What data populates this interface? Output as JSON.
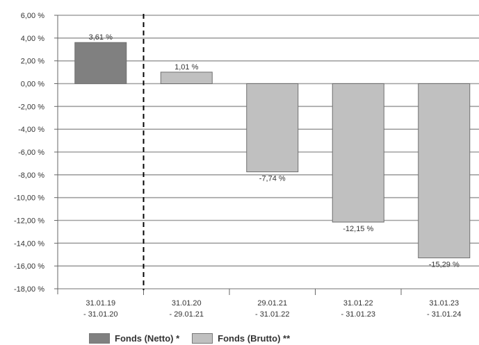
{
  "chart_data": {
    "type": "bar",
    "categories": [
      [
        "31.01.19",
        "- 31.01.20"
      ],
      [
        "31.01.20",
        "- 29.01.21"
      ],
      [
        "29.01.21",
        "- 31.01.22"
      ],
      [
        "31.01.22",
        "- 31.01.23"
      ],
      [
        "31.01.23",
        "- 31.01.24"
      ]
    ],
    "values": [
      3.61,
      1.01,
      -7.74,
      -12.15,
      -15.29
    ],
    "value_labels": [
      "3,61 %",
      "1,01 %",
      "-7,74 %",
      "-12,15 %",
      "-15,29 %"
    ],
    "bar_series": [
      0,
      1,
      1,
      1,
      1
    ],
    "series": [
      {
        "name": "Fonds (Netto) *",
        "color": "#808080"
      },
      {
        "name": "Fonds (Brutto) **",
        "color": "#c0c0c0"
      }
    ],
    "ylim": [
      -18,
      6
    ],
    "yticks": [
      6,
      4,
      2,
      0,
      -2,
      -4,
      -6,
      -8,
      -10,
      -12,
      -14,
      -16,
      -18
    ],
    "ytick_labels": [
      "6,00 %",
      "4,00 %",
      "2,00 %",
      "0,00 %",
      "-2,00 %",
      "-4,00 %",
      "-6,00 %",
      "-8,00 %",
      "-10,00 %",
      "-12,00 %",
      "-14,00 %",
      "-16,00 %",
      "-18,00 %"
    ],
    "grid": true,
    "divider_after_category": 0,
    "legend_position": "bottom"
  }
}
